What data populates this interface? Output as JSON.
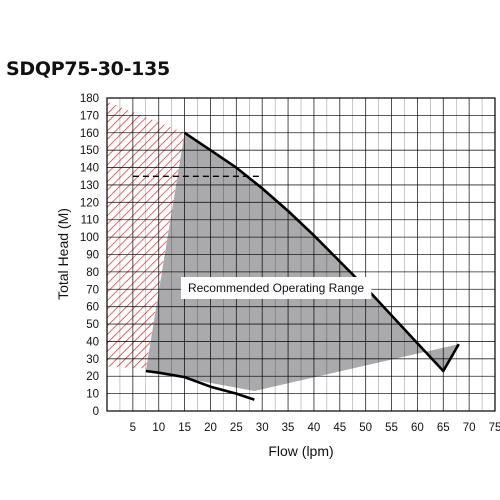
{
  "page": {
    "title": "SDQP75-30-135"
  },
  "chart_data": {
    "type": "line",
    "title": "SDQP75-30-135",
    "xlabel": "Flow (lpm)",
    "ylabel": "Total Head (M)",
    "xlim": [
      0,
      75
    ],
    "ylim": [
      0,
      180
    ],
    "xticks": [
      5,
      10,
      15,
      20,
      25,
      30,
      35,
      40,
      45,
      50,
      55,
      60,
      65,
      70,
      75
    ],
    "xtick_labels": [
      "5",
      "10",
      "15",
      "20",
      "25",
      "30",
      "35",
      "40",
      "45",
      "50",
      "55",
      "60",
      "65",
      "70",
      "75"
    ],
    "yticks": [
      0,
      10,
      20,
      30,
      40,
      50,
      60,
      70,
      80,
      90,
      100,
      110,
      120,
      130,
      140,
      150,
      160,
      170,
      180
    ],
    "ytick_labels": [
      "0",
      "10",
      "20",
      "30",
      "40",
      "50",
      "60",
      "70",
      "80",
      "90",
      "100",
      "110",
      "120",
      "130",
      "140",
      "150",
      "160",
      "170",
      "180"
    ],
    "grid": true,
    "series": [
      {
        "role": "max-curve",
        "x": [
          15,
          20,
          25,
          30,
          35,
          40,
          45,
          50,
          55,
          60,
          65,
          68
        ],
        "y": [
          160,
          150,
          140,
          128,
          115,
          101,
          86,
          71,
          55,
          39,
          23,
          38.5
        ]
      },
      {
        "role": "min-curve",
        "x": [
          7.5,
          10,
          15,
          20,
          25,
          27,
          28.5
        ],
        "y": [
          23,
          22,
          19.5,
          14,
          10,
          8,
          6.5
        ]
      },
      {
        "role": "rated-head-line",
        "x": [
          5,
          30
        ],
        "y": [
          135,
          135
        ]
      }
    ],
    "regions": {
      "recommended": {
        "label": "Recommended Operating Range",
        "polygon": [
          [
            15,
            160
          ],
          [
            20,
            150
          ],
          [
            25,
            140
          ],
          [
            30,
            128
          ],
          [
            35,
            115
          ],
          [
            40,
            101
          ],
          [
            45,
            86
          ],
          [
            50,
            71
          ],
          [
            55,
            55
          ],
          [
            60,
            39
          ],
          [
            65,
            23
          ],
          [
            68,
            38.5
          ],
          [
            28.5,
            11.5
          ],
          [
            7.5,
            23
          ]
        ]
      },
      "not_recommended": {
        "polygon": [
          [
            0,
            178
          ],
          [
            15,
            160
          ],
          [
            7.5,
            24.5
          ],
          [
            0,
            25.5
          ]
        ]
      }
    },
    "colors": {
      "recommended_fill": "#aaaaac",
      "hatch": "#d42a2a",
      "curve": "#000000",
      "grid": "#000000"
    }
  }
}
